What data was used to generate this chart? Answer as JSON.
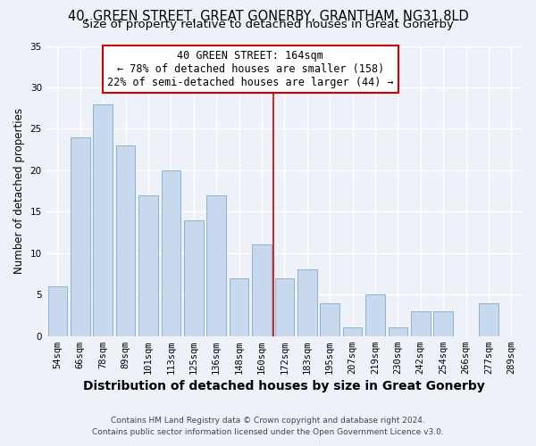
{
  "title": "40, GREEN STREET, GREAT GONERBY, GRANTHAM, NG31 8LD",
  "subtitle": "Size of property relative to detached houses in Great Gonerby",
  "xlabel": "Distribution of detached houses by size in Great Gonerby",
  "ylabel": "Number of detached properties",
  "bar_labels": [
    "54sqm",
    "66sqm",
    "78sqm",
    "89sqm",
    "101sqm",
    "113sqm",
    "125sqm",
    "136sqm",
    "148sqm",
    "160sqm",
    "172sqm",
    "183sqm",
    "195sqm",
    "207sqm",
    "219sqm",
    "230sqm",
    "242sqm",
    "254sqm",
    "266sqm",
    "277sqm",
    "289sqm"
  ],
  "bar_values": [
    6,
    24,
    28,
    23,
    17,
    20,
    14,
    17,
    7,
    11,
    7,
    8,
    4,
    1,
    5,
    1,
    3,
    3,
    0,
    4,
    0
  ],
  "bar_color": "#c8d8ed",
  "bar_edge_color": "#8ab4d4",
  "ylim": [
    0,
    35
  ],
  "yticks": [
    0,
    5,
    10,
    15,
    20,
    25,
    30,
    35
  ],
  "vline_x_index": 9.5,
  "vline_color": "#cc0000",
  "annotation_title": "40 GREEN STREET: 164sqm",
  "annotation_line1": "← 78% of detached houses are smaller (158)",
  "annotation_line2": "22% of semi-detached houses are larger (44) →",
  "annotation_box_color": "#cc0000",
  "footer1": "Contains HM Land Registry data © Crown copyright and database right 2024.",
  "footer2": "Contains public sector information licensed under the Open Government Licence v3.0.",
  "background_color": "#eef2f8",
  "grid_color": "#ffffff",
  "title_fontsize": 10.5,
  "subtitle_fontsize": 9.5,
  "xlabel_fontsize": 10,
  "ylabel_fontsize": 8.5,
  "tick_fontsize": 7.5,
  "footer_fontsize": 6.5,
  "annotation_fontsize": 8.5
}
